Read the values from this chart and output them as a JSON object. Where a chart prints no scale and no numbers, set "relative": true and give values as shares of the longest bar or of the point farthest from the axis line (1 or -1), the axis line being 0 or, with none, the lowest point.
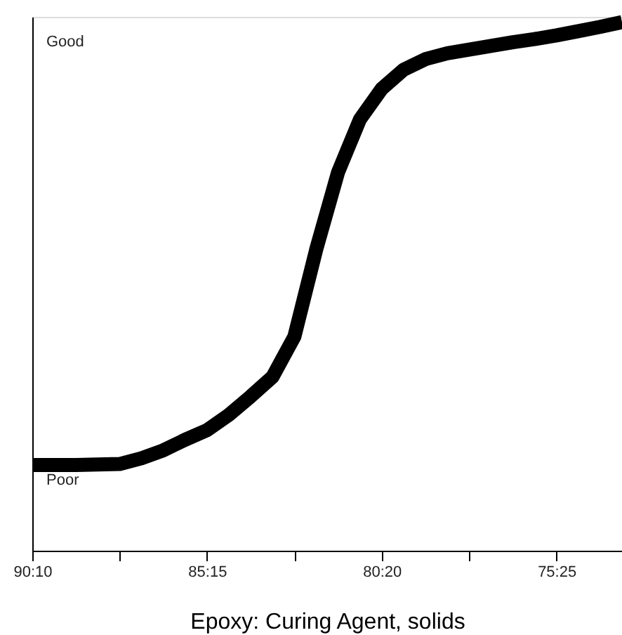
{
  "chart_data": {
    "type": "line",
    "relative": true,
    "xlabel": "Epoxy: Curing Agent, solids",
    "annotations": [
      "Good",
      "Poor"
    ],
    "categories": [
      "90:10",
      null,
      null,
      null,
      null,
      null,
      null,
      null,
      "85:15",
      null,
      null,
      null,
      null,
      null,
      null,
      null,
      "80:20",
      null,
      null,
      null,
      null,
      null,
      null,
      null,
      "75:25",
      null,
      null,
      null
    ],
    "grid": false,
    "marker": "none",
    "line_style": "solid",
    "series": [
      {
        "color": "#000000",
        "values": [
          0.162,
          0.162,
          0.162,
          0.163,
          0.164,
          0.175,
          0.19,
          0.21,
          0.228,
          0.257,
          0.292,
          0.329,
          0.405,
          0.57,
          0.716,
          0.816,
          0.874,
          0.91,
          0.93,
          0.941,
          0.948,
          0.955,
          0.962,
          0.968,
          0.975,
          0.983,
          0.991,
          1.0
        ]
      }
    ]
  }
}
